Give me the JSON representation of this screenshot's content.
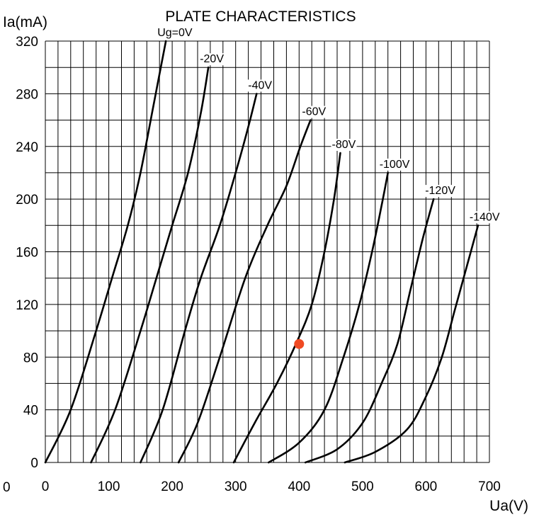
{
  "chart_data": {
    "type": "line",
    "title": "PLATE CHARACTERISTICS",
    "xlabel": "Ua(V)",
    "ylabel": "Ia(mA)",
    "xlim": [
      0,
      700
    ],
    "ylim": [
      0,
      320
    ],
    "x_ticks": [
      0,
      100,
      200,
      300,
      400,
      500,
      600,
      700
    ],
    "x_tick_labels": [
      "0",
      "100",
      "200",
      "300",
      "400",
      "500",
      "600",
      "700"
    ],
    "y_ticks": [
      0,
      40,
      80,
      120,
      160,
      200,
      240,
      280,
      320
    ],
    "y_tick_labels": [
      "0",
      "40",
      "80",
      "120",
      "160",
      "200",
      "240",
      "280",
      "320"
    ],
    "extra_x_label": "0",
    "grid": true,
    "grid_x_step": 20,
    "grid_y_step": 20,
    "series": [
      {
        "name": "Ug=0V",
        "x": [
          0,
          40,
          80,
          105,
          130,
          150,
          170,
          190
        ],
        "y": [
          0,
          40,
          100,
          140,
          180,
          220,
          270,
          320
        ]
      },
      {
        "name": "-20V",
        "x": [
          72,
          110,
          150,
          175,
          200,
          225,
          245,
          257
        ],
        "y": [
          0,
          40,
          100,
          140,
          180,
          220,
          265,
          300
        ]
      },
      {
        "name": "-40V",
        "x": [
          150,
          185,
          220,
          245,
          275,
          300,
          320,
          333
        ],
        "y": [
          0,
          40,
          100,
          140,
          180,
          220,
          255,
          280
        ]
      },
      {
        "name": "-60V",
        "x": [
          210,
          240,
          275,
          315,
          350,
          380,
          402,
          418
        ],
        "y": [
          0,
          30,
          80,
          140,
          180,
          210,
          240,
          260
        ]
      },
      {
        "name": "-80V",
        "x": [
          297,
          330,
          365,
          395,
          420,
          440,
          455,
          465
        ],
        "y": [
          0,
          30,
          60,
          90,
          120,
          160,
          200,
          235
        ]
      },
      {
        "name": "-100V",
        "x": [
          352,
          400,
          440,
          470,
          495,
          515,
          530,
          540
        ],
        "y": [
          0,
          15,
          40,
          80,
          120,
          160,
          195,
          220
        ]
      },
      {
        "name": "-120V",
        "x": [
          410,
          460,
          500,
          530,
          555,
          575,
          595,
          612
        ],
        "y": [
          0,
          10,
          30,
          60,
          90,
          130,
          170,
          200
        ]
      },
      {
        "name": "-140V",
        "x": [
          472,
          520,
          570,
          600,
          625,
          645,
          665,
          682
        ],
        "y": [
          0,
          8,
          25,
          50,
          80,
          115,
          150,
          180
        ]
      }
    ],
    "operating_point": {
      "x": 400,
      "y": 90,
      "color": "#f04a23"
    }
  }
}
